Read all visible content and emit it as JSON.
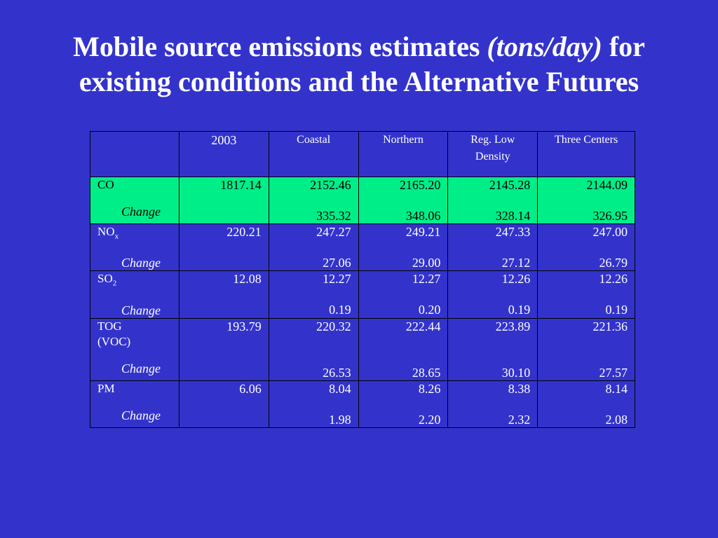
{
  "title": {
    "line1_pre": "Mobile source emissions estimates ",
    "line1_italic": "(tons/day)",
    "line1_post": "  for",
    "line2": "existing conditions and the Alternative Futures"
  },
  "table": {
    "headers": [
      "",
      "2003",
      "Coastal",
      "Northern",
      "Reg. Low Density",
      "Three Centers"
    ],
    "change_label": "Change",
    "rows": [
      {
        "name": "CO",
        "values": [
          "1817.14",
          "2152.46",
          "2165.20",
          "2145.28",
          "2144.09"
        ],
        "changes": [
          "",
          "335.32",
          "348.06",
          "328.14",
          "326.95"
        ]
      },
      {
        "name": "NO",
        "sub": "x",
        "values": [
          "220.21",
          "247.27",
          "249.21",
          "247.33",
          "247.00"
        ],
        "changes": [
          "",
          "27.06",
          "29.00",
          "27.12",
          "26.79"
        ]
      },
      {
        "name": "SO",
        "sub": "2",
        "values": [
          "12.08",
          "12.27",
          "12.27",
          "12.26",
          "12.26"
        ],
        "changes": [
          "",
          "0.19",
          "0.20",
          "0.19",
          "0.19"
        ]
      },
      {
        "name": "TOG",
        "name2": "(VOC)",
        "values": [
          "193.79",
          "220.32",
          "222.44",
          "223.89",
          "221.36"
        ],
        "changes": [
          "",
          "26.53",
          "28.65",
          "30.10",
          "27.57"
        ]
      },
      {
        "name": "PM",
        "values": [
          "6.06",
          "8.04",
          "8.26",
          "8.38",
          "8.14"
        ],
        "changes": [
          "",
          "1.98",
          "2.20",
          "2.32",
          "2.08"
        ]
      }
    ]
  },
  "colors": {
    "background": "#3333cc",
    "highlight_row": "#00ee88",
    "text": "#ffffff"
  }
}
